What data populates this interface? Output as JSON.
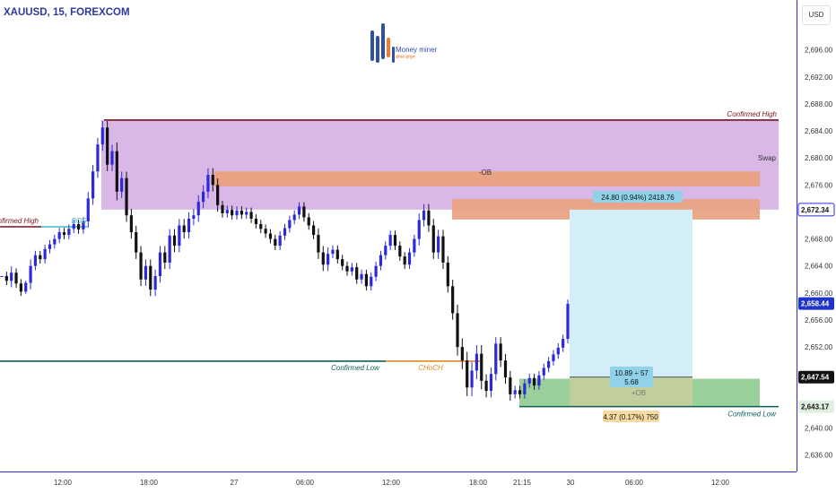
{
  "header": {
    "symbol": "XAUUSD, 15, FOREXCOM"
  },
  "logo": {
    "name": "Money miner",
    "tagline": "ब्रोकर ब्रांड्स"
  },
  "price_axis": {
    "currency": "USD",
    "ticks": [
      "2,696.00",
      "2,692.00",
      "2,688.00",
      "2,684.00",
      "2,680.00",
      "2,676.00",
      "2,668.00",
      "2,664.00",
      "2,660.00",
      "2,656.00",
      "2,652.00",
      "2,640.00",
      "2,636.00"
    ],
    "price_tags": [
      {
        "text": "2,672.34",
        "value": 2672.34,
        "style": "outline"
      },
      {
        "text": "2,658.44",
        "value": 2658.44,
        "style": "blue"
      },
      {
        "text": "2,647.54",
        "value": 2647.54,
        "style": "black"
      },
      {
        "text": "2,643.17",
        "value": 2643.17,
        "style": "green"
      }
    ]
  },
  "time_axis": {
    "ticks": [
      "12:00",
      "18:00",
      "27",
      "06:00",
      "12:00",
      "18:00",
      "21:15",
      "30",
      "06:00",
      "12:00"
    ]
  },
  "annotations": {
    "confirmed_high_top": "Confirmed High",
    "swap": "Swap",
    "ob_bearish": "-OB",
    "confirmed_high_left": "Confirmed High",
    "bos": "BOS",
    "confirmed_low_mid": "Confirmed Low",
    "choch": "CHoCH",
    "confirmed_low_right": "Confirmed Low",
    "ob_bullish": "+OB",
    "target_stats": "24.80 (0.94%) 2418.76",
    "risk_reward_line1": "10.89 ÷ 57",
    "risk_reward_line2": "5.68",
    "stop_stats": "4.37 (0.17%) 750"
  },
  "colors": {
    "bull": "#2c2ad8",
    "bear": "#111111",
    "premium_zone": "#d9b7e6",
    "ob_bearish": "#e9a283",
    "target_zone": "#d3eef7",
    "stop_zone": "#8fcc8f",
    "confirmed_high": "#7a1020",
    "confirmed_low": "#0e5e58",
    "choch": "#e8872d",
    "bos": "#3fb8c8"
  },
  "chart_data": {
    "type": "candlestick",
    "title": "XAUUSD, 15, FOREXCOM",
    "ylim": [
      2634.6,
      2698.0
    ],
    "y_ticks": [
      2696,
      2692,
      2688,
      2684,
      2680,
      2676,
      2668,
      2664,
      2660,
      2656,
      2652,
      2640,
      2636
    ],
    "x_tick_labels": [
      "12:00",
      "18:00",
      "27",
      "06:00",
      "12:00",
      "18:00",
      "21:15",
      "30",
      "06:00",
      "12:00"
    ],
    "price_path": [
      [
        2662.5,
        0
      ],
      [
        2661.8,
        2
      ],
      [
        2663.0,
        3
      ],
      [
        2661.4,
        2
      ],
      [
        2660.2,
        2
      ],
      [
        2661.5,
        1
      ],
      [
        2664.0,
        3
      ],
      [
        2665.6,
        2
      ],
      [
        2665.0,
        2
      ],
      [
        2666.5,
        2
      ],
      [
        2667.2,
        2
      ],
      [
        2668.0,
        2
      ],
      [
        2669.0,
        2
      ],
      [
        2668.6,
        2
      ],
      [
        2669.5,
        2
      ],
      [
        2670.2,
        2
      ],
      [
        2669.4,
        2
      ],
      [
        2670.6,
        2
      ],
      [
        2674.0,
        3
      ],
      [
        2678.0,
        3
      ],
      [
        2682.0,
        3
      ],
      [
        2684.5,
        3
      ],
      [
        2679.0,
        3
      ],
      [
        2681.0,
        3
      ],
      [
        2675.0,
        4
      ],
      [
        2677.0,
        3
      ],
      [
        2671.5,
        3
      ],
      [
        2669.0,
        3
      ],
      [
        2666.0,
        3
      ],
      [
        2662.0,
        3
      ],
      [
        2664.0,
        3
      ],
      [
        2660.5,
        3
      ],
      [
        2662.5,
        3
      ],
      [
        2666.0,
        3
      ],
      [
        2664.5,
        3
      ],
      [
        2668.5,
        3
      ],
      [
        2667.0,
        3
      ],
      [
        2670.0,
        3
      ],
      [
        2669.0,
        3
      ],
      [
        2671.0,
        3
      ],
      [
        2671.5,
        3
      ],
      [
        2673.5,
        3
      ],
      [
        2675.0,
        3
      ],
      [
        2677.5,
        3
      ],
      [
        2676.0,
        3
      ],
      [
        2673.0,
        3
      ],
      [
        2671.8,
        2
      ],
      [
        2672.3,
        2
      ],
      [
        2671.5,
        2
      ],
      [
        2672.2,
        2
      ],
      [
        2671.6,
        2
      ],
      [
        2672.0,
        2
      ],
      [
        2671.0,
        2
      ],
      [
        2670.2,
        2
      ],
      [
        2669.5,
        2
      ],
      [
        2668.8,
        2
      ],
      [
        2668.0,
        2
      ],
      [
        2667.0,
        2
      ],
      [
        2668.5,
        2
      ],
      [
        2669.6,
        2
      ],
      [
        2670.8,
        2
      ],
      [
        2671.6,
        2
      ],
      [
        2672.8,
        2
      ],
      [
        2671.2,
        2
      ],
      [
        2670.0,
        2
      ],
      [
        2668.6,
        2
      ],
      [
        2666.0,
        3
      ],
      [
        2664.2,
        3
      ],
      [
        2665.8,
        3
      ],
      [
        2666.4,
        2
      ],
      [
        2665.0,
        2
      ],
      [
        2664.0,
        2
      ],
      [
        2663.2,
        2
      ],
      [
        2663.8,
        2
      ],
      [
        2662.0,
        2
      ],
      [
        2662.8,
        2
      ],
      [
        2661.0,
        2
      ],
      [
        2662.4,
        2
      ],
      [
        2664.0,
        2
      ],
      [
        2665.6,
        2
      ],
      [
        2667.0,
        2
      ],
      [
        2668.6,
        2
      ],
      [
        2667.0,
        2
      ],
      [
        2665.4,
        2
      ],
      [
        2664.2,
        2
      ],
      [
        2666.0,
        2
      ],
      [
        2668.0,
        2
      ],
      [
        2670.8,
        3
      ],
      [
        2672.2,
        3
      ],
      [
        2670.0,
        3
      ],
      [
        2666.0,
        3
      ],
      [
        2668.4,
        3
      ],
      [
        2664.5,
        3
      ],
      [
        2661.0,
        3
      ],
      [
        2657.0,
        3
      ],
      [
        2652.0,
        4
      ],
      [
        2650.0,
        4
      ],
      [
        2646.0,
        4
      ],
      [
        2648.5,
        4
      ],
      [
        2651.0,
        4
      ],
      [
        2647.0,
        4
      ],
      [
        2645.5,
        3
      ],
      [
        2648.0,
        3
      ],
      [
        2652.5,
        3
      ],
      [
        2650.0,
        3
      ],
      [
        2647.5,
        3
      ],
      [
        2645.0,
        3
      ],
      [
        2645.6,
        2
      ],
      [
        2645.0,
        2
      ],
      [
        2646.6,
        2
      ],
      [
        2647.4,
        2
      ],
      [
        2646.3,
        2
      ],
      [
        2647.8,
        2
      ],
      [
        2648.9,
        2
      ],
      [
        2649.9,
        2
      ],
      [
        2650.9,
        2
      ],
      [
        2651.9,
        2
      ],
      [
        2653.2,
        2
      ],
      [
        2658.4,
        2
      ]
    ],
    "levels": [
      {
        "label": "Confirmed High",
        "price": 2685.6
      },
      {
        "label": "BOS",
        "price": 2669.8
      },
      {
        "label": "Confirmed Low",
        "price": 2649.9
      },
      {
        "label": "CHoCH",
        "price": 2649.9
      },
      {
        "label": "Confirmed Low",
        "price": 2643.17
      }
    ],
    "zones": [
      {
        "label": "Swap",
        "top": 2685.6,
        "bottom": 2672.34
      },
      {
        "label": "-OB",
        "top": 2678.0,
        "bottom": 2675.8
      },
      {
        "label": "+OB",
        "top": 2647.3,
        "bottom": 2643.17
      }
    ],
    "position": {
      "entry": 2647.54,
      "target": 2672.34,
      "stop": 2643.17
    }
  }
}
